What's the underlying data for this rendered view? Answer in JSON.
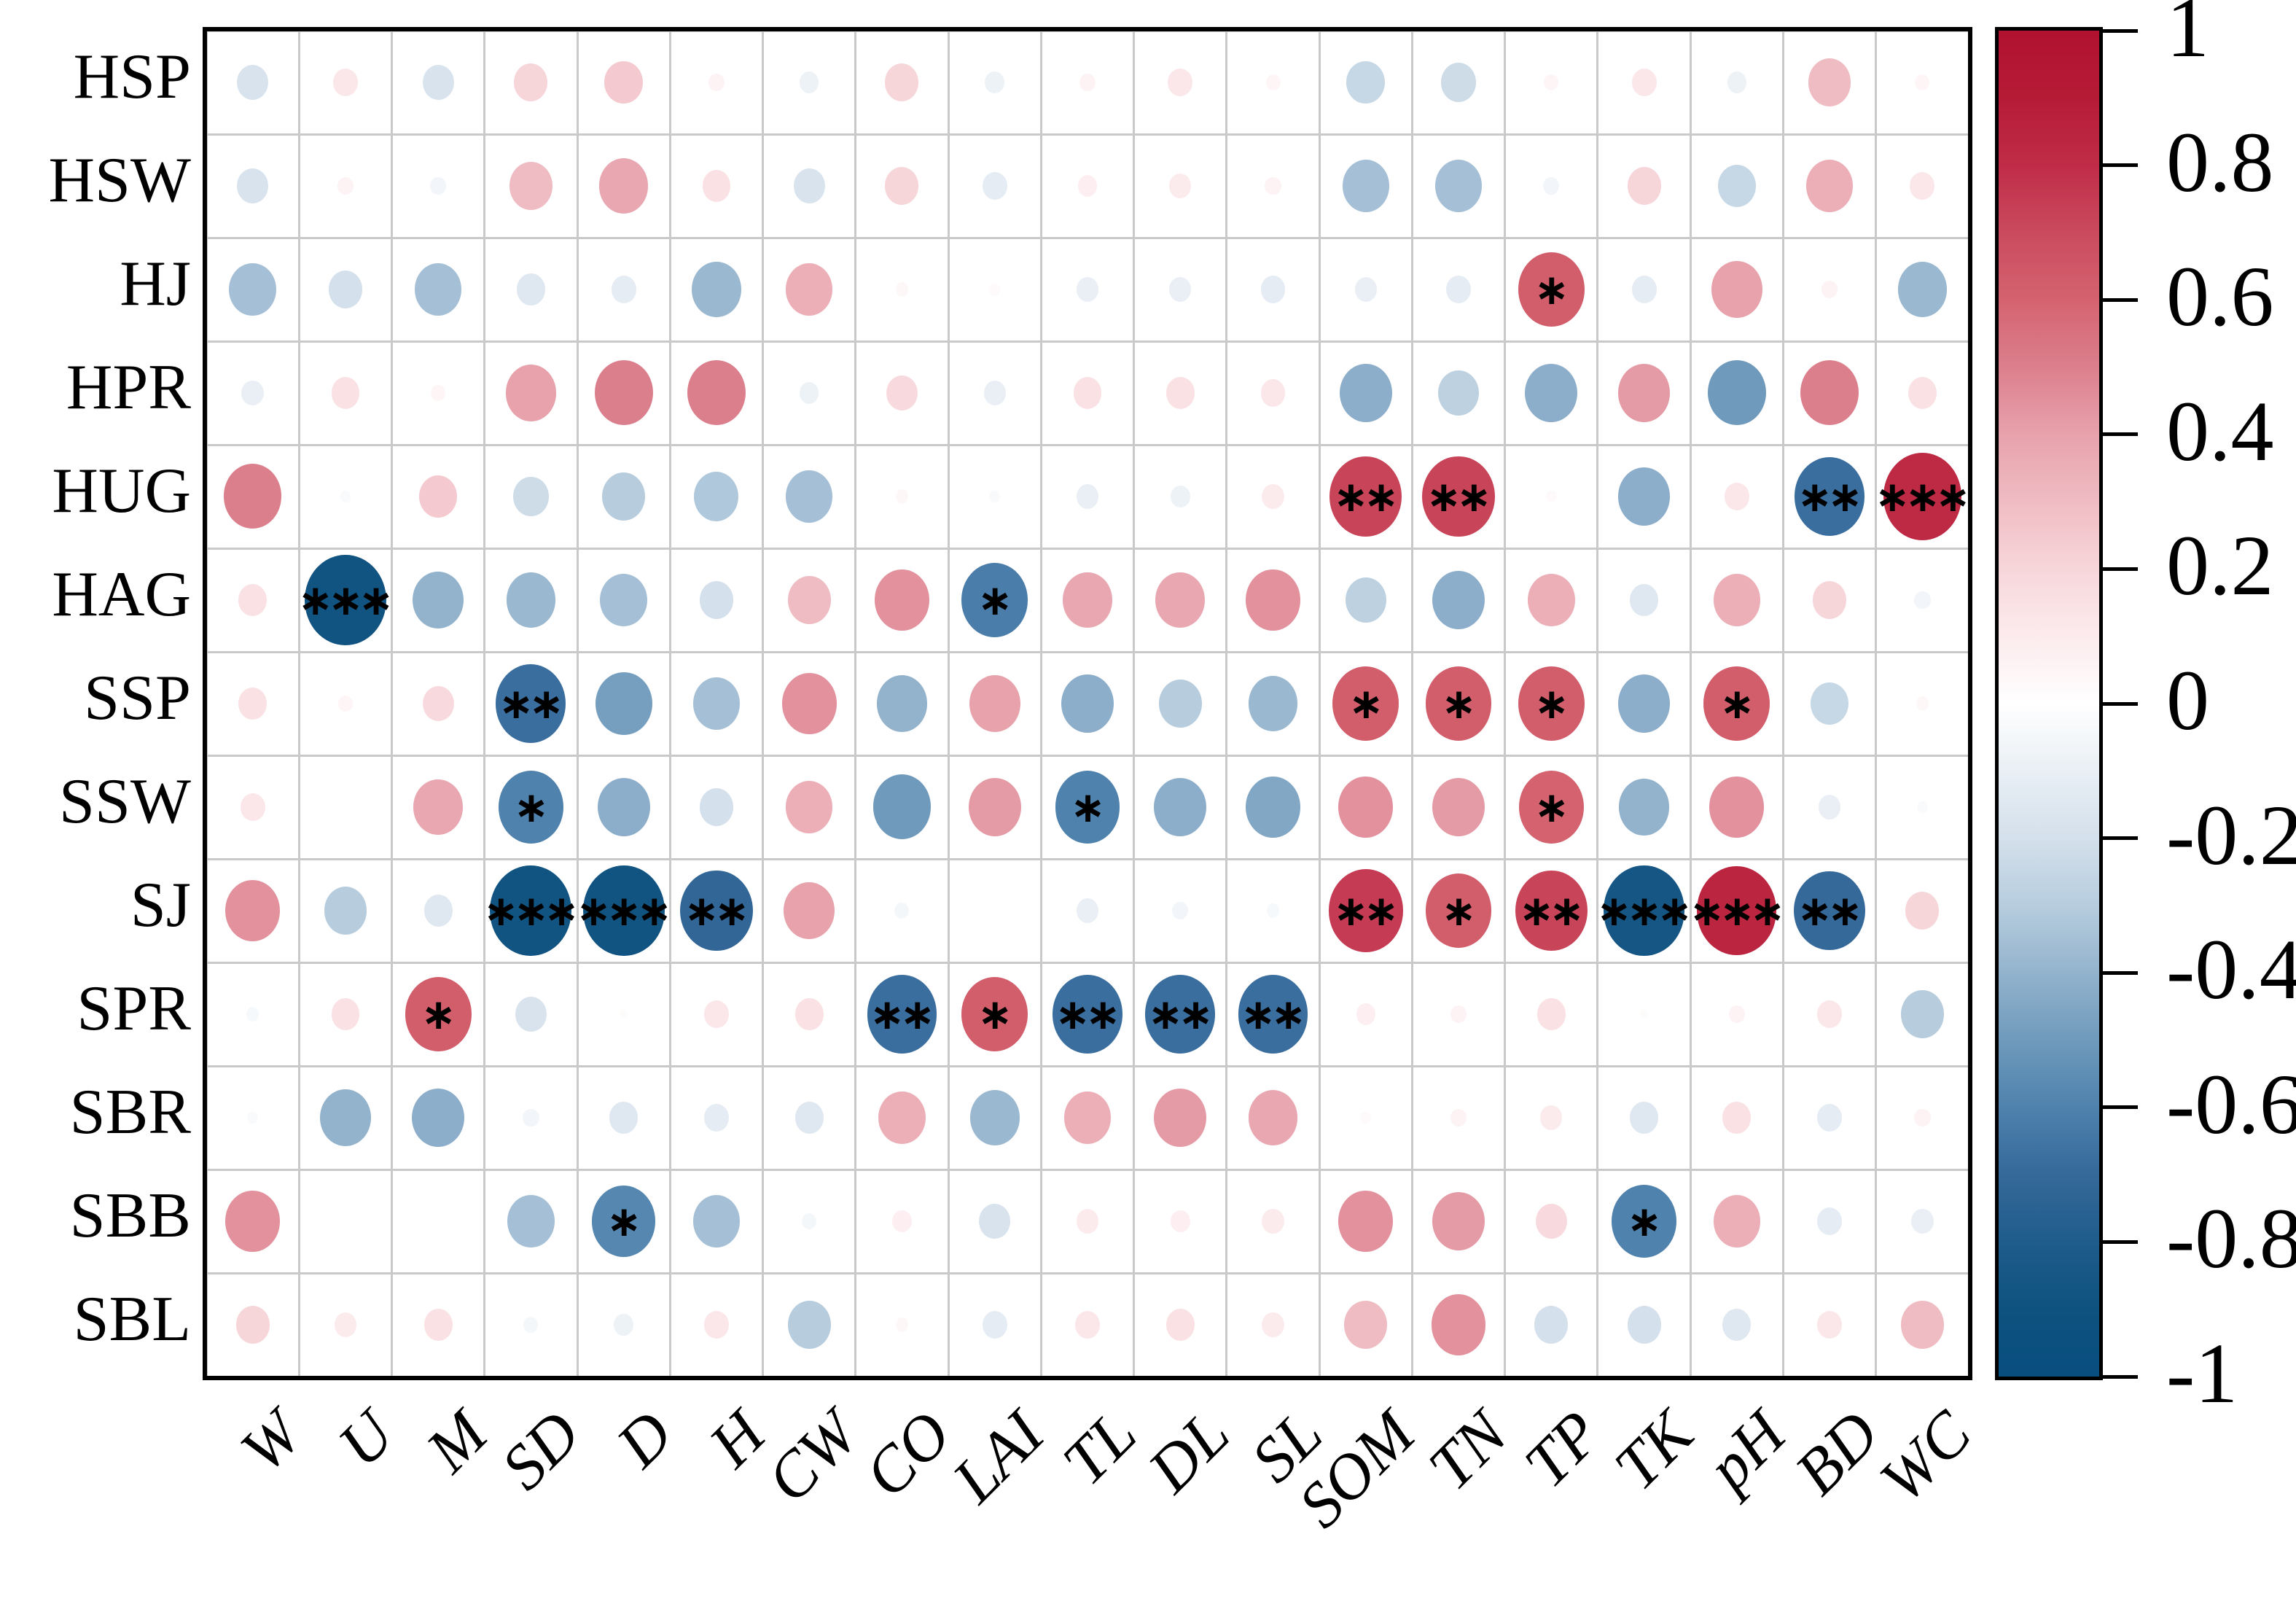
{
  "chart_data": {
    "type": "heatmap",
    "variant": "correlation-bubble-matrix",
    "rows": [
      "HSP",
      "HSW",
      "HJ",
      "HPR",
      "HUG",
      "HAG",
      "SSP",
      "SSW",
      "SJ",
      "SPR",
      "SBR",
      "SBB",
      "SBL"
    ],
    "columns": [
      "W",
      "U",
      "M",
      "SD",
      "D",
      "H",
      "CW",
      "CO",
      "LAI",
      "TL",
      "DL",
      "SL",
      "SOM",
      "TN",
      "TP",
      "TK",
      "pH",
      "BD",
      "WC"
    ],
    "values": [
      [
        -0.18,
        0.12,
        -0.18,
        0.2,
        0.25,
        0.06,
        -0.08,
        0.2,
        -0.08,
        0.06,
        0.12,
        0.05,
        -0.25,
        -0.22,
        0.05,
        0.12,
        -0.08,
        0.3,
        0.05
      ],
      [
        -0.18,
        0.06,
        -0.06,
        0.3,
        0.38,
        0.15,
        -0.18,
        0.2,
        -0.12,
        0.08,
        0.1,
        0.06,
        -0.35,
        -0.35,
        -0.06,
        0.2,
        -0.25,
        0.35,
        0.12
      ],
      [
        -0.35,
        -0.2,
        -0.35,
        -0.15,
        -0.12,
        -0.38,
        0.35,
        0.04,
        0.03,
        -0.1,
        -0.1,
        -0.12,
        -0.1,
        -0.12,
        0.62,
        -0.12,
        0.4,
        0.06,
        -0.38
      ],
      [
        -0.1,
        0.15,
        0.05,
        0.4,
        0.5,
        0.5,
        -0.08,
        0.18,
        -0.1,
        0.15,
        0.15,
        0.12,
        -0.42,
        -0.28,
        -0.42,
        0.42,
        -0.5,
        0.5,
        0.15
      ],
      [
        0.5,
        -0.03,
        0.25,
        -0.22,
        -0.3,
        -0.32,
        -0.35,
        0.04,
        -0.03,
        -0.1,
        -0.08,
        0.1,
        0.72,
        0.72,
        0.03,
        -0.42,
        0.12,
        -0.68,
        0.82
      ],
      [
        0.15,
        -0.88,
        -0.4,
        -0.38,
        -0.35,
        -0.2,
        0.3,
        0.45,
        -0.62,
        0.38,
        0.38,
        0.45,
        -0.28,
        -0.42,
        0.35,
        -0.15,
        0.35,
        0.2,
        -0.06
      ],
      [
        0.15,
        0.05,
        0.18,
        -0.68,
        -0.48,
        -0.35,
        0.45,
        -0.4,
        0.4,
        -0.42,
        -0.3,
        -0.38,
        0.62,
        0.62,
        0.62,
        -0.42,
        0.62,
        -0.25,
        0.04
      ],
      [
        0.12,
        0.0,
        0.38,
        -0.6,
        -0.42,
        -0.2,
        0.35,
        -0.5,
        0.42,
        -0.6,
        -0.42,
        -0.45,
        0.45,
        0.42,
        0.6,
        -0.4,
        0.45,
        -0.1,
        -0.03
      ],
      [
        0.45,
        -0.3,
        -0.15,
        -0.88,
        -0.88,
        -0.72,
        0.4,
        -0.05,
        0.0,
        -0.1,
        -0.06,
        -0.04,
        0.75,
        0.62,
        0.72,
        -0.86,
        0.84,
        -0.7,
        0.2
      ],
      [
        -0.04,
        0.15,
        0.62,
        -0.18,
        0.02,
        0.12,
        0.15,
        -0.68,
        0.62,
        -0.68,
        -0.68,
        -0.68,
        0.08,
        0.06,
        0.15,
        0.02,
        0.06,
        0.12,
        -0.3
      ],
      [
        -0.03,
        -0.4,
        -0.42,
        -0.06,
        -0.15,
        -0.12,
        -0.15,
        0.35,
        -0.38,
        0.35,
        0.42,
        0.38,
        0.03,
        0.06,
        0.1,
        -0.15,
        0.15,
        -0.12,
        0.06
      ],
      [
        0.45,
        0.0,
        0.0,
        -0.35,
        -0.58,
        -0.35,
        -0.05,
        0.08,
        -0.18,
        0.1,
        0.08,
        0.1,
        0.45,
        0.42,
        0.18,
        -0.6,
        0.35,
        -0.12,
        -0.1
      ],
      [
        0.2,
        0.1,
        0.15,
        -0.05,
        -0.08,
        0.12,
        -0.3,
        0.04,
        -0.12,
        0.12,
        0.15,
        0.1,
        0.3,
        0.45,
        -0.2,
        -0.2,
        -0.15,
        0.12,
        0.3
      ]
    ],
    "significance": [
      [
        "",
        "",
        "",
        "",
        "",
        "",
        "",
        "",
        "",
        "",
        "",
        "",
        "",
        "",
        "",
        "",
        "",
        "",
        ""
      ],
      [
        "",
        "",
        "",
        "",
        "",
        "",
        "",
        "",
        "",
        "",
        "",
        "",
        "",
        "",
        "",
        "",
        "",
        "",
        ""
      ],
      [
        "",
        "",
        "",
        "",
        "",
        "",
        "",
        "",
        "",
        "",
        "",
        "",
        "",
        "",
        "*",
        "",
        "",
        "",
        ""
      ],
      [
        "",
        "",
        "",
        "",
        "",
        "",
        "",
        "",
        "",
        "",
        "",
        "",
        "",
        "",
        "",
        "",
        "",
        "",
        ""
      ],
      [
        "",
        "",
        "",
        "",
        "",
        "",
        "",
        "",
        "",
        "",
        "",
        "",
        "**",
        "**",
        "",
        "",
        "",
        "**",
        "***"
      ],
      [
        "",
        "***",
        "",
        "",
        "",
        "",
        "",
        "",
        "*",
        "",
        "",
        "",
        "",
        "",
        "",
        "",
        "",
        "",
        ""
      ],
      [
        "",
        "",
        "",
        "**",
        "",
        "",
        "",
        "",
        "",
        "",
        "",
        "",
        "*",
        "*",
        "*",
        "",
        "*",
        "",
        ""
      ],
      [
        "",
        "",
        "",
        "*",
        "",
        "",
        "",
        "",
        "",
        "*",
        "",
        "",
        "",
        "",
        "*",
        "",
        "",
        "",
        ""
      ],
      [
        "",
        "",
        "",
        "***",
        "***",
        "**",
        "",
        "",
        "",
        "",
        "",
        "",
        "**",
        "*",
        "**",
        "***",
        "***",
        "**",
        ""
      ],
      [
        "",
        "",
        "*",
        "",
        "",
        "",
        "",
        "**",
        "*",
        "**",
        "**",
        "**",
        "",
        "",
        "",
        "",
        "",
        "",
        ""
      ],
      [
        "",
        "",
        "",
        "",
        "",
        "",
        "",
        "",
        "",
        "",
        "",
        "",
        "",
        "",
        "",
        "",
        "",
        "",
        ""
      ],
      [
        "",
        "",
        "",
        "",
        "*",
        "",
        "",
        "",
        "",
        "",
        "",
        "",
        "",
        "",
        "",
        "*",
        "",
        "",
        ""
      ],
      [
        "",
        "",
        "",
        "",
        "",
        "",
        "",
        "",
        "",
        "",
        "",
        "",
        "",
        "",
        "",
        "",
        "",
        "",
        ""
      ]
    ],
    "colorbar": {
      "range": [
        -1,
        1
      ],
      "tick_labels": [
        "1",
        "0.8",
        "0.6",
        "0.4",
        "0.2",
        "0",
        "-0.2",
        "-0.4",
        "-0.6",
        "-0.8",
        "-1"
      ],
      "max_color": "#b01230",
      "zero_color": "#ffffff",
      "min_color": "#084e7f"
    },
    "legend_position": "right",
    "grid": true,
    "xlabel": "",
    "ylabel": "",
    "title": ""
  }
}
